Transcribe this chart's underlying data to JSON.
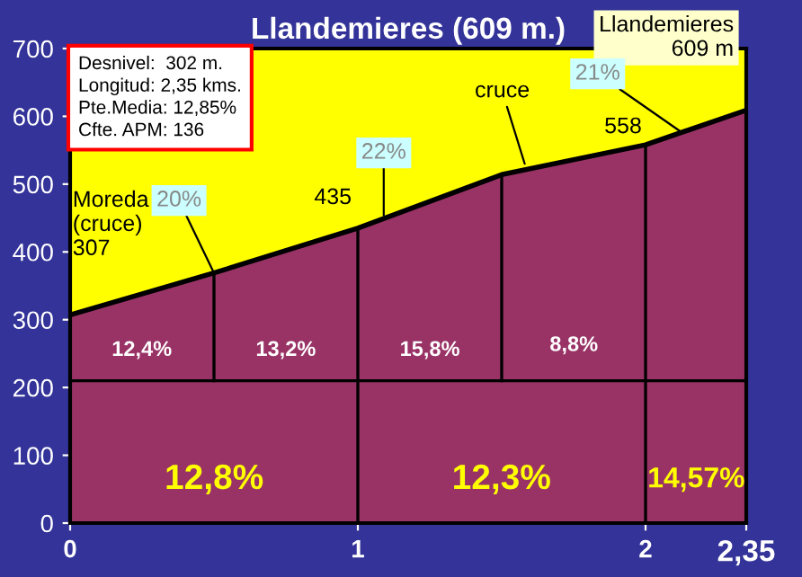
{
  "chart_data": {
    "type": "area",
    "title": "Llandemieres (609 m.)",
    "x": [
      0,
      0.5,
      1,
      1.5,
      2,
      2.35
    ],
    "series": [
      {
        "color": "#993366",
        "values": [
          307,
          369,
          435,
          514,
          558,
          609
        ]
      }
    ],
    "xlim": [
      0,
      2.35
    ],
    "xticks": [
      0,
      1,
      2,
      {
        "value": 2.35,
        "label": "2,35"
      }
    ],
    "ylim": [
      0,
      700
    ],
    "yticks": [
      0,
      100,
      200,
      300,
      400,
      500,
      600,
      700
    ],
    "grid": false,
    "ref_lines": [
      {
        "axis": "x",
        "value": 0.5,
        "color": "#000000"
      },
      {
        "axis": "x",
        "value": 1,
        "color": "#000000"
      },
      {
        "axis": "x",
        "value": 1.5,
        "color": "#000000"
      },
      {
        "axis": "x",
        "value": 2,
        "color": "#000000"
      },
      {
        "axis": "y",
        "value": 210,
        "color": "#000000"
      }
    ],
    "annotations": [
      "Desnivel:  302 m.\nLongitud: 2,35 kms.\nPte.Media: 12,85%\nCfte. APM: 136",
      {
        "text": "Moreda\n(cruce)\n307",
        "x": 0,
        "y": 307
      },
      {
        "text": "435",
        "x": 1,
        "y": 435
      },
      {
        "text": "558",
        "x": 2,
        "y": 558
      },
      {
        "text": "Llandemieres\n609 m",
        "x": 2.35,
        "y": 609
      },
      {
        "text": "cruce",
        "x": 1.58,
        "y": 530
      },
      {
        "text": "20%",
        "x": 0.5,
        "y": 369
      },
      {
        "text": "22%",
        "x": 1.09,
        "y": 454
      },
      {
        "text": "21%",
        "x": 2.12,
        "y": 578
      },
      "12,4%",
      "13,2%",
      "15,8%",
      "8,8%",
      "12,8%",
      "12,3%",
      "14,57%"
    ]
  }
}
